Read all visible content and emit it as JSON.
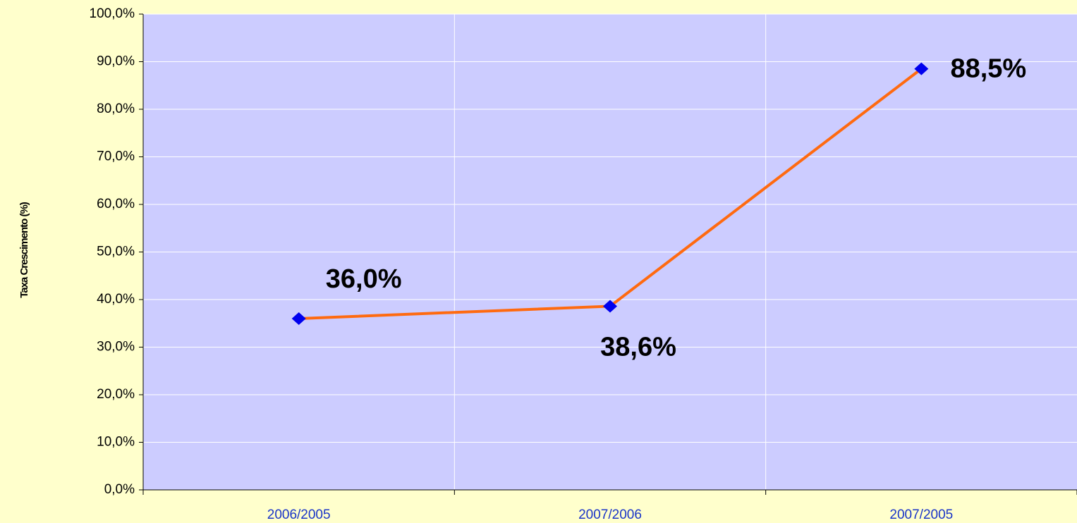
{
  "chart_data": {
    "type": "line",
    "y_label": "Taxa Crescimento (%)",
    "categories": [
      "2006/2005",
      "2007/2006",
      "2007/2005"
    ],
    "series": [
      {
        "name": null,
        "color": "#ff6a10",
        "marker_color": "#0000ee",
        "values": [
          36.0,
          38.6,
          88.5
        ],
        "value_labels": [
          "36,0%",
          "38,6%",
          "88,5%"
        ]
      }
    ],
    "ylim": [
      0,
      100
    ],
    "yticks": [
      {
        "value": 0,
        "label": "0,0%"
      },
      {
        "value": 10,
        "label": "10,0%"
      },
      {
        "value": 20,
        "label": "20,0%"
      },
      {
        "value": 30,
        "label": "30,0%"
      },
      {
        "value": 40,
        "label": "40,0%"
      },
      {
        "value": 50,
        "label": "50,0%"
      },
      {
        "value": 60,
        "label": "60,0%"
      },
      {
        "value": 70,
        "label": "70,0%"
      },
      {
        "value": 80,
        "label": "80,0%"
      },
      {
        "value": 90,
        "label": "90,0%"
      },
      {
        "value": 100,
        "label": "100,0%"
      }
    ],
    "grid": true,
    "plot_color": "#ccccff"
  }
}
